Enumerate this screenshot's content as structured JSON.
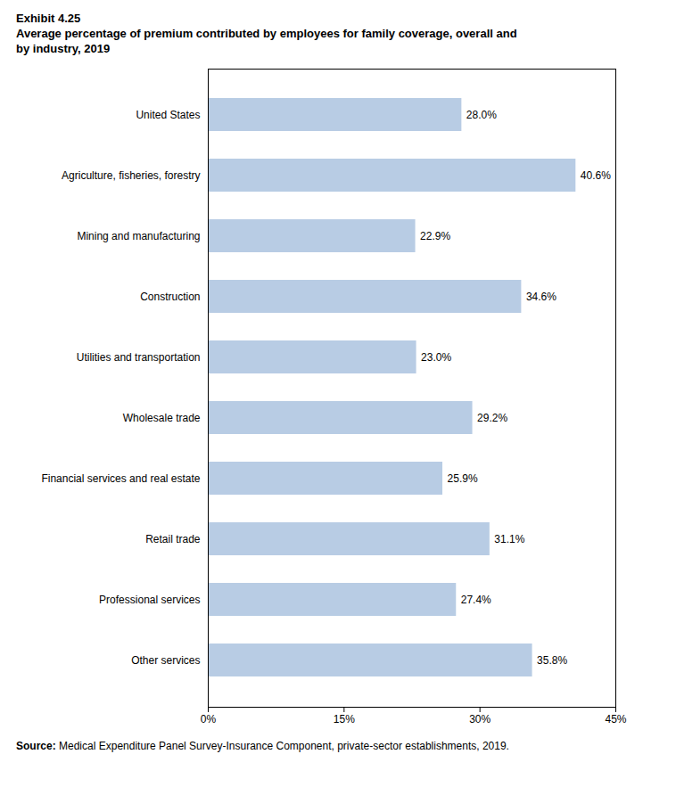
{
  "chart_data": {
    "type": "bar",
    "orientation": "horizontal",
    "title": "Exhibit 4.25",
    "subtitle": [
      "Average percentage of premium contributed by employees for family coverage, overall and",
      "by industry, 2019"
    ],
    "source_label": "Source:",
    "source": "Medical Expenditure Panel Survey-Insurance Component, private-sector establishments, 2019.",
    "categories": [
      "United States",
      "Agriculture, fisheries, forestry",
      "Mining and manufacturing",
      "Construction",
      "Utilities and transportation",
      "Wholesale trade",
      "Financial services and real estate",
      "Retail trade",
      "Professional services",
      "Other services"
    ],
    "values": [
      28.0,
      40.6,
      22.9,
      34.6,
      23.0,
      29.2,
      25.9,
      31.1,
      27.4,
      35.8
    ],
    "value_labels": [
      "28.0%",
      "40.6%",
      "22.9%",
      "34.6%",
      "23.0%",
      "29.2%",
      "25.9%",
      "31.1%",
      "27.4%",
      "35.8%"
    ],
    "data_labels": true,
    "color": "#b8cce4",
    "xlim": [
      0,
      45
    ],
    "xticks": [
      {
        "value": 0,
        "label": "0%"
      },
      {
        "value": 15,
        "label": "15%"
      },
      {
        "value": 30,
        "label": "30%"
      },
      {
        "value": 45,
        "label": "45%"
      }
    ],
    "grid": false
  }
}
